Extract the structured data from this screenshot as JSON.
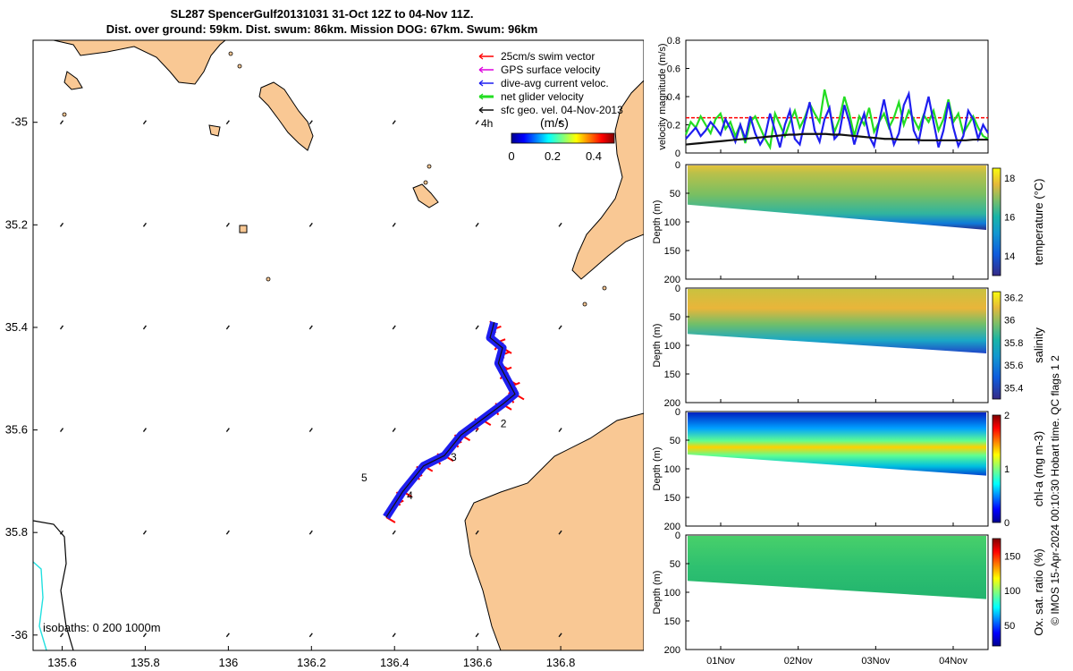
{
  "title_line1": "SL287 SpencerGulf20131031 31-Oct 12Z to 04-Nov 11Z.",
  "title_line2": "Dist. over ground: 59km. Dist. swum: 86km. Mission DOG: 67km. Swum: 96km",
  "credit": "© IMOS 15-Apr-2024 00:10:30 Hobart time. QC flags 1  2",
  "colors": {
    "land": "#f9c894",
    "swim": "#ff0000",
    "dive": "#1e1ef0",
    "net": "#22dd22",
    "geo": "#111111",
    "gps": "#dd00dd"
  },
  "chart_data": [
    {
      "type": "map",
      "xlim": [
        135.53,
        137.0
      ],
      "ylim": [
        -36.03,
        -34.84
      ],
      "xticks": [
        135.6,
        135.8,
        136,
        136.2,
        136.4,
        136.6,
        136.8
      ],
      "xtick_labels": [
        "135.6",
        "135.8",
        "136",
        "136.2",
        "136.4",
        "136.6",
        "136.8"
      ],
      "yticks": [
        -35,
        -35.2,
        -35.4,
        -35.6,
        -35.8,
        -36
      ],
      "ytick_labels": [
        "-35",
        "35.2",
        "35.4",
        "35.6",
        "35.8",
        "-36"
      ],
      "legend": [
        {
          "label": "25cm/s swim vector",
          "color": "#ff0000"
        },
        {
          "label": "GPS surface velocity",
          "color": "#dd00dd"
        },
        {
          "label": "dive-avg current veloc.",
          "color": "#1e1ef0"
        },
        {
          "label": "net glider velocity",
          "color": "#22dd22"
        },
        {
          "label": "sfc geo. vel. 04-Nov-2013",
          "color": "#111111"
        }
      ],
      "legend_position": "top-right",
      "duration_label": "4h",
      "colorbar": {
        "unit": "(m/s)",
        "ticks": [
          0,
          0.2,
          0.4
        ],
        "tick_labels": [
          "0",
          "0.2",
          "0.4"
        ],
        "range": [
          0,
          0.5
        ]
      },
      "isobaths_label": "isobaths: 0   200  1000m",
      "track": [
        [
          136.38,
          -35.77
        ],
        [
          136.42,
          -35.72
        ],
        [
          136.47,
          -35.67
        ],
        [
          136.52,
          -35.65
        ],
        [
          136.56,
          -35.61
        ],
        [
          136.61,
          -35.58
        ],
        [
          136.66,
          -35.55
        ],
        [
          136.69,
          -35.53
        ],
        [
          136.67,
          -35.5
        ],
        [
          136.65,
          -35.47
        ],
        [
          136.66,
          -35.44
        ],
        [
          136.63,
          -35.42
        ],
        [
          136.64,
          -35.39
        ]
      ],
      "day_labels": [
        {
          "text": "2",
          "lon": 136.655,
          "lat": -35.595
        },
        {
          "text": "3",
          "lon": 136.535,
          "lat": -35.66
        },
        {
          "text": "4",
          "lon": 136.43,
          "lat": -35.735
        },
        {
          "text": "5",
          "lon": 136.32,
          "lat": -35.7
        }
      ]
    },
    {
      "type": "line",
      "ylabel": "velocity magnitude (m/s)",
      "ylim": [
        0,
        0.8
      ],
      "yticks": [
        0,
        0.2,
        0.4,
        0.6,
        0.8
      ],
      "ytick_labels": [
        "0",
        "0.2",
        "0.4",
        "0.6",
        "0.8"
      ],
      "xlim": [
        0.55,
        4.45
      ],
      "series": [
        {
          "color": "#ff0000",
          "style": "dashed",
          "values": [
            0.25,
            0.25
          ]
        },
        {
          "color": "#22dd22",
          "values": [
            0.13,
            0.22,
            0.18,
            0.26,
            0.2,
            0.14,
            0.24,
            0.28,
            0.17,
            0.22,
            0.12,
            0.2,
            0.07,
            0.22,
            0.26,
            0.18,
            0.1,
            0.04,
            0.28,
            0.2,
            0.12,
            0.22,
            0.3,
            0.18,
            0.25,
            0.35,
            0.28,
            0.22,
            0.45,
            0.3,
            0.15,
            0.24,
            0.4,
            0.28,
            0.12,
            0.26,
            0.2,
            0.32,
            0.15,
            0.22,
            0.28,
            0.18,
            0.25,
            0.36,
            0.2,
            0.3,
            0.24,
            0.17,
            0.27,
            0.22,
            0.3,
            0.16,
            0.24,
            0.38,
            0.22,
            0.28,
            0.14,
            0.2,
            0.26,
            0.18,
            0.12,
            0.1
          ]
        },
        {
          "color": "#1e1ef0",
          "values": [
            0.1,
            0.14,
            0.18,
            0.12,
            0.16,
            0.22,
            0.18,
            0.13,
            0.24,
            0.17,
            0.08,
            0.2,
            0.1,
            0.26,
            0.14,
            0.06,
            0.12,
            0.28,
            0.16,
            0.04,
            0.2,
            0.3,
            0.1,
            0.06,
            0.22,
            0.36,
            0.16,
            0.08,
            0.24,
            0.32,
            0.1,
            0.14,
            0.34,
            0.22,
            0.06,
            0.18,
            0.28,
            0.12,
            0.05,
            0.22,
            0.38,
            0.2,
            0.06,
            0.14,
            0.34,
            0.42,
            0.16,
            0.08,
            0.26,
            0.4,
            0.22,
            0.04,
            0.16,
            0.36,
            0.18,
            0.05,
            0.12,
            0.3,
            0.24,
            0.1,
            0.2,
            0.14
          ]
        },
        {
          "color": "#111111",
          "values": [
            0.06,
            0.065,
            0.07,
            0.075,
            0.08,
            0.085,
            0.09,
            0.095,
            0.1,
            0.105,
            0.11,
            0.115,
            0.12,
            0.125,
            0.13,
            0.13,
            0.135,
            0.135,
            0.135,
            0.135,
            0.13,
            0.13,
            0.125,
            0.12,
            0.115,
            0.11,
            0.105,
            0.1,
            0.1,
            0.095,
            0.095,
            0.095,
            0.09,
            0.09,
            0.09,
            0.09,
            0.09,
            0.09,
            0.09,
            0.095,
            0.095,
            0.095
          ]
        }
      ]
    },
    {
      "type": "heatmap",
      "ylabel": "Depth (m)",
      "cbar_label": "temperature (°C)",
      "ylim": [
        0,
        200
      ],
      "yticks": [
        0,
        50,
        100,
        150,
        200
      ],
      "ytick_labels": [
        "0",
        "50",
        "100",
        "150",
        "200"
      ],
      "ctick_labels": [
        "18",
        "16",
        "14"
      ],
      "ctick_values": [
        18,
        16,
        14
      ],
      "clim": [
        13,
        18.5
      ],
      "colormap": "parula",
      "bottom_depth": [
        70,
        114
      ]
    },
    {
      "type": "heatmap",
      "ylabel": "Depth (m)",
      "cbar_label": "salinity",
      "ylim": [
        0,
        200
      ],
      "yticks": [
        0,
        50,
        100,
        150,
        200
      ],
      "ytick_labels": [
        "0",
        "50",
        "100",
        "150",
        "200"
      ],
      "ctick_labels": [
        "36.2",
        "36",
        "35.8",
        "35.6",
        "35.4"
      ],
      "ctick_values": [
        36.2,
        36,
        35.8,
        35.6,
        35.4
      ],
      "clim": [
        35.3,
        36.25
      ],
      "colormap": "parula",
      "bottom_depth": [
        80,
        114
      ]
    },
    {
      "type": "heatmap",
      "ylabel": "Depth (m)",
      "cbar_label": "chl-a (mg m-3)",
      "ylim": [
        0,
        200
      ],
      "yticks": [
        0,
        50,
        100,
        150,
        200
      ],
      "ytick_labels": [
        "0",
        "50",
        "100",
        "150",
        "200"
      ],
      "ctick_labels": [
        "2",
        "1",
        "0"
      ],
      "ctick_values": [
        2,
        1,
        0
      ],
      "clim": [
        0,
        2
      ],
      "colormap": "jet",
      "bottom_depth": [
        75,
        112
      ]
    },
    {
      "type": "heatmap",
      "ylabel": "Depth (m)",
      "cbar_label": "Ox. sat. ratio (%)",
      "ylim": [
        0,
        200
      ],
      "yticks": [
        0,
        50,
        100,
        150,
        200
      ],
      "ytick_labels": [
        "0",
        "50",
        "100",
        "150",
        "200"
      ],
      "ctick_labels": [
        "150",
        "100",
        "50"
      ],
      "ctick_values": [
        150,
        100,
        50
      ],
      "clim": [
        20,
        175
      ],
      "colormap": "jet",
      "bottom_depth": [
        80,
        112
      ]
    },
    {
      "type": "time_axis",
      "xticks": [
        1,
        2,
        3,
        4
      ],
      "xtick_labels": [
        "01Nov",
        "02Nov",
        "03Nov",
        "04Nov"
      ],
      "xlim": [
        0.55,
        4.45
      ]
    }
  ]
}
